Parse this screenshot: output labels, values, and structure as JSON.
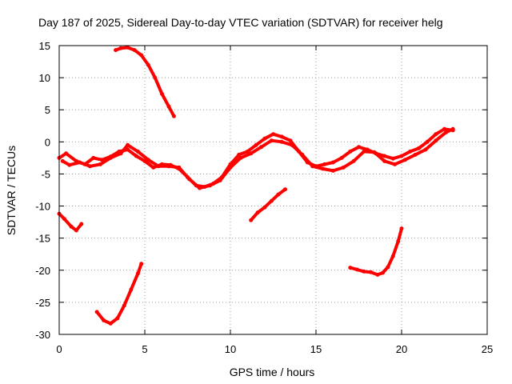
{
  "chart_data": {
    "type": "scatter",
    "title": "Day 187 of 2025, Sidereal Day-to-day VTEC variation (SDTVAR) for receiver helg",
    "xlabel": "GPS time / hours",
    "ylabel": "SDTVAR / TECUs",
    "xlim": [
      0,
      25
    ],
    "ylim": [
      -30,
      15
    ],
    "xticks": [
      0,
      5,
      10,
      15,
      20,
      25
    ],
    "yticks": [
      -30,
      -25,
      -20,
      -15,
      -10,
      -5,
      0,
      5,
      10,
      15
    ],
    "grid": true,
    "color": "#ff0000",
    "series": [
      {
        "name": "main-band-a",
        "x": [
          0,
          0.4,
          1.0,
          1.5,
          2.0,
          2.5,
          3.0,
          3.5,
          4.0,
          4.5,
          5.0,
          5.5,
          6.0,
          6.5,
          7.0,
          7.5,
          8.0,
          8.5,
          9.0,
          9.5,
          10.0,
          10.5,
          11.0,
          11.5,
          12.0,
          12.5,
          13.0,
          13.5,
          14.0,
          14.5,
          15.0,
          15.5,
          16.0,
          16.5,
          17.0,
          17.5,
          18.0,
          18.5,
          19.0,
          19.5,
          20.0,
          20.5,
          21.0,
          21.5,
          22.0,
          22.5,
          23.0
        ],
        "y": [
          -2.5,
          -1.8,
          -3.0,
          -3.5,
          -2.5,
          -2.8,
          -2.3,
          -1.5,
          -1.2,
          -2.2,
          -3.0,
          -4.0,
          -3.5,
          -3.6,
          -4.2,
          -5.5,
          -6.8,
          -7.0,
          -6.5,
          -5.5,
          -3.5,
          -2.0,
          -1.5,
          -0.5,
          0.5,
          1.2,
          0.8,
          0.2,
          -1.5,
          -3.2,
          -3.8,
          -3.5,
          -3.2,
          -2.5,
          -1.5,
          -0.8,
          -1.2,
          -1.8,
          -2.2,
          -2.6,
          -2.2,
          -1.5,
          -1.0,
          0.0,
          1.2,
          2.0,
          1.8
        ]
      },
      {
        "name": "main-band-b",
        "x": [
          0.2,
          0.6,
          1.2,
          1.8,
          2.4,
          3.0,
          3.6,
          4.0,
          4.6,
          5.2,
          5.8,
          6.4,
          7.0,
          7.6,
          8.2,
          8.8,
          9.4,
          10.0,
          10.6,
          11.2,
          11.8,
          12.4,
          13.0,
          13.6,
          14.2,
          14.8,
          15.4,
          16.0,
          16.6,
          17.2,
          17.8,
          18.4,
          19.0,
          19.6,
          20.2,
          20.8,
          21.4,
          22.0,
          22.6,
          23.0
        ],
        "y": [
          -3.0,
          -3.6,
          -3.2,
          -3.8,
          -3.5,
          -2.5,
          -1.8,
          -0.5,
          -1.5,
          -2.8,
          -3.8,
          -3.8,
          -4.0,
          -5.8,
          -7.2,
          -6.8,
          -6.0,
          -4.0,
          -2.5,
          -1.8,
          -0.8,
          0.2,
          0.0,
          -0.5,
          -2.0,
          -3.8,
          -4.2,
          -4.5,
          -4.0,
          -3.0,
          -1.5,
          -1.6,
          -3.0,
          -3.5,
          -2.8,
          -2.0,
          -1.2,
          0.2,
          1.5,
          2.0
        ]
      },
      {
        "name": "arc-early",
        "x": [
          0,
          0.3,
          0.7,
          1.0,
          1.3
        ],
        "y": [
          -11.2,
          -12.0,
          -13.2,
          -13.8,
          -12.8
        ]
      },
      {
        "name": "arc-low",
        "x": [
          2.2,
          2.6,
          3.0,
          3.4,
          3.8,
          4.2,
          4.6,
          4.8
        ],
        "y": [
          -26.5,
          -27.8,
          -28.3,
          -27.5,
          -25.5,
          -23.0,
          -20.5,
          -19.0
        ]
      },
      {
        "name": "arc-high",
        "x": [
          3.3,
          3.6,
          4.0,
          4.4,
          4.8,
          5.2,
          5.6,
          6.0,
          6.4,
          6.7
        ],
        "y": [
          14.3,
          14.6,
          14.7,
          14.3,
          13.5,
          12.0,
          10.0,
          7.5,
          5.5,
          4.0
        ]
      },
      {
        "name": "arc-mid",
        "x": [
          11.2,
          11.6,
          12.0,
          12.4,
          12.8,
          13.2
        ],
        "y": [
          -12.2,
          -11.0,
          -10.2,
          -9.2,
          -8.2,
          -7.4
        ]
      },
      {
        "name": "arc-right",
        "x": [
          17.0,
          17.4,
          17.8,
          18.2,
          18.6,
          18.9,
          19.2,
          19.5,
          19.8,
          20.0
        ],
        "y": [
          -19.6,
          -19.9,
          -20.2,
          -20.3,
          -20.7,
          -20.4,
          -19.5,
          -17.8,
          -15.5,
          -13.5
        ]
      }
    ]
  }
}
